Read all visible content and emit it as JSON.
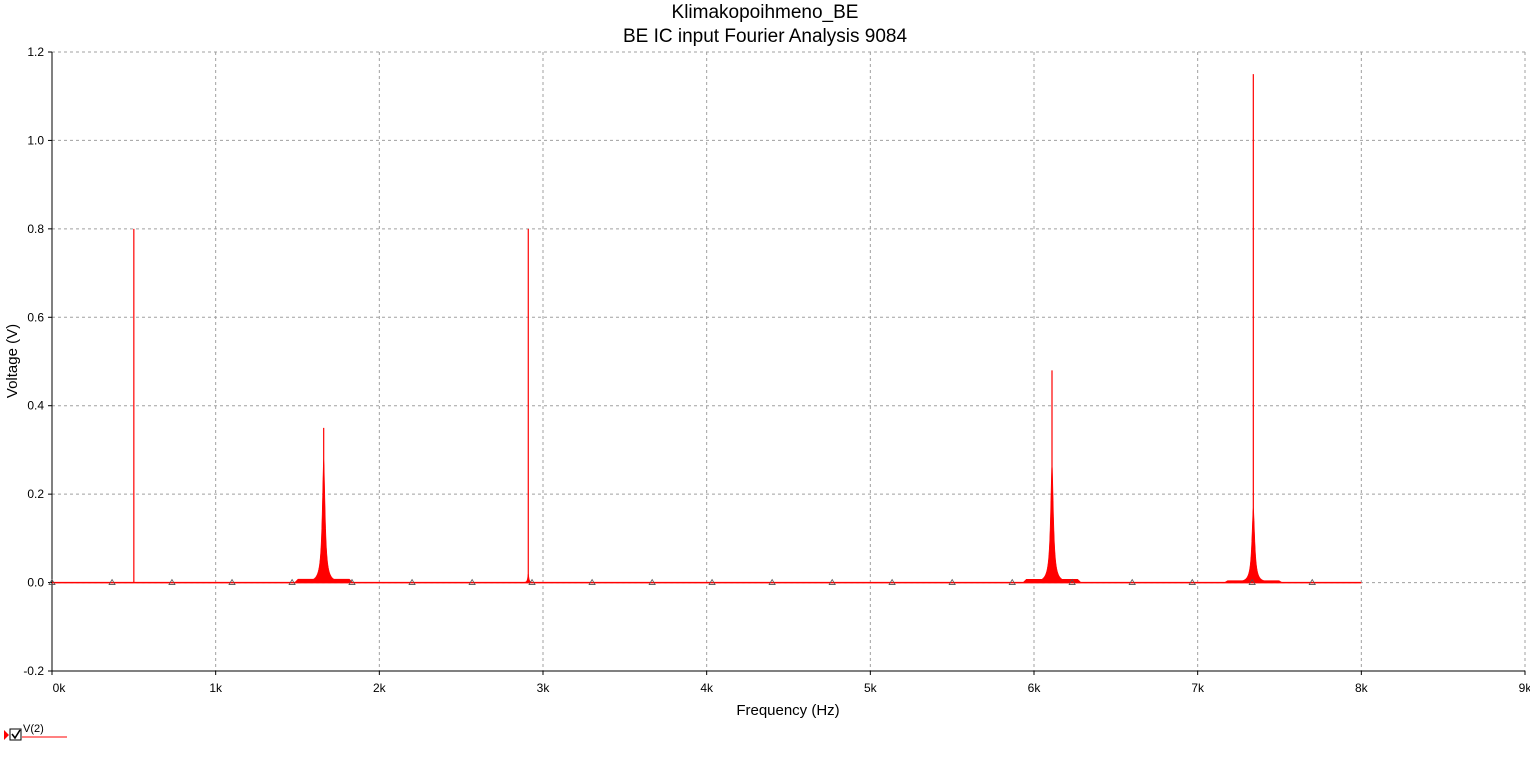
{
  "chart_data": {
    "type": "line",
    "title": "Klimakopoihmeno_BE",
    "subtitle": "BE IC input Fourier Analysis 9084",
    "xlabel": "Frequency (Hz)",
    "ylabel": "Voltage (V)",
    "xlim": [
      0,
      9000
    ],
    "ylim": [
      -0.2,
      1.2
    ],
    "x_tick_values": [
      0,
      1000,
      2000,
      3000,
      4000,
      5000,
      6000,
      7000,
      8000,
      9000
    ],
    "x_tick_labels": [
      "0k",
      "1k",
      "2k",
      "3k",
      "4k",
      "5k",
      "6k",
      "7k",
      "8k",
      "9k"
    ],
    "y_tick_values": [
      -0.2,
      0.0,
      0.2,
      0.4,
      0.6,
      0.8,
      1.0,
      1.2
    ],
    "y_tick_labels": [
      "-0.2",
      "0.0",
      "0.2",
      "0.4",
      "0.6",
      "0.8",
      "1.0",
      "1.2"
    ],
    "grid": true,
    "legend_position": "bottom-left",
    "series": [
      {
        "name": "V(2)",
        "color": "#ff0000",
        "x_range": [
          0,
          8000
        ],
        "baseline": 0.0,
        "peaks": [
          {
            "x": 500,
            "y": 0.8,
            "width_hz": 10,
            "skirt": 0.0
          },
          {
            "x": 1660,
            "y": 0.35,
            "width_hz": 45,
            "skirt": 0.28
          },
          {
            "x": 2910,
            "y": 0.8,
            "width_hz": 20,
            "skirt": 0.02
          },
          {
            "x": 6110,
            "y": 0.48,
            "width_hz": 45,
            "skirt": 0.27
          },
          {
            "x": 7340,
            "y": 1.15,
            "width_hz": 45,
            "skirt": 0.17
          }
        ],
        "marker_shape": "triangle",
        "marker_x": [
          0,
          367,
          733,
          1100,
          1467,
          1833,
          2200,
          2567,
          2933,
          3300,
          3667,
          4033,
          4400,
          4767,
          5133,
          5500,
          5867,
          6233,
          6600,
          6967,
          7333,
          7700
        ],
        "marker_y": 0.0
      }
    ]
  }
}
